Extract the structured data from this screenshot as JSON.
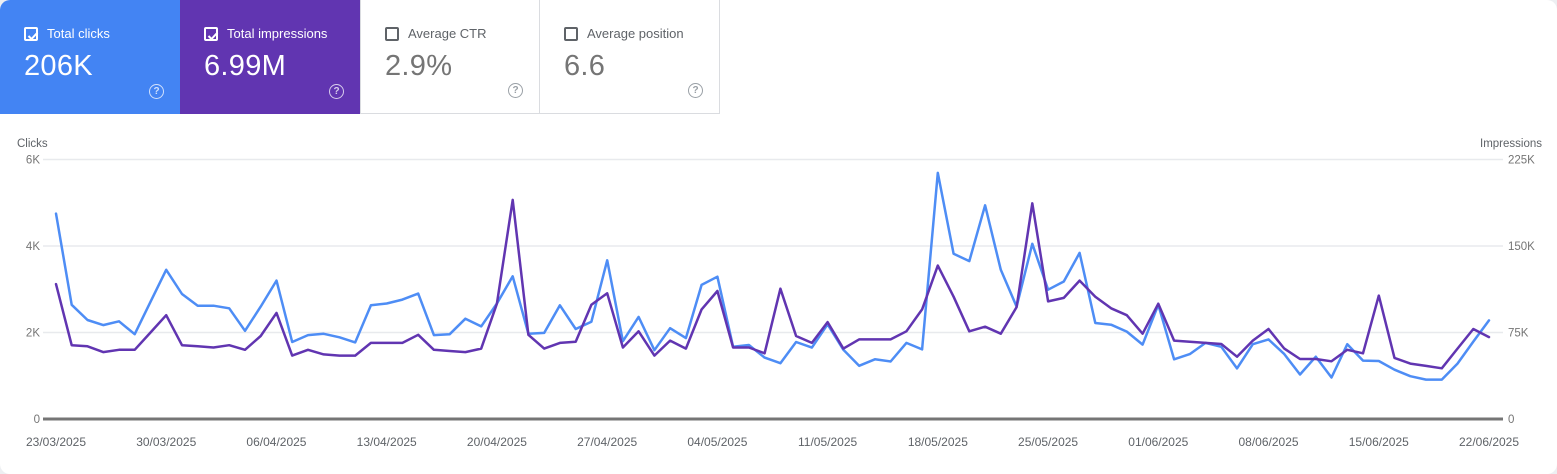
{
  "app": "Search Console Performance",
  "colors": {
    "clicks_accent": "#4384f3",
    "impressions_accent": "#6135b1",
    "clicks_line": "#4e8df5",
    "impressions_line": "#6135b1",
    "gridline": "#e8eaed",
    "axis_baseline": "#757575",
    "muted_text": "#5f6368"
  },
  "help_icon": "?",
  "cards": [
    {
      "id": "total-clicks",
      "label": "Total clicks",
      "value": "206K",
      "checked": true,
      "bg": "#4384f3",
      "label_color": "#ffffff",
      "value_color": "#ffffff",
      "checkbox_color": "#ffffff",
      "help_color": "rgba(255,255,255,0.75)"
    },
    {
      "id": "total-impressions",
      "label": "Total impressions",
      "value": "6.99M",
      "checked": true,
      "bg": "#6135b1",
      "label_color": "#ffffff",
      "value_color": "#ffffff",
      "checkbox_color": "#ffffff",
      "help_color": "rgba(255,255,255,0.75)"
    },
    {
      "id": "average-ctr",
      "label": "Average CTR",
      "value": "2.9%",
      "checked": false,
      "bg": "#ffffff",
      "label_color": "#5f6368",
      "value_color": "#757575",
      "checkbox_color": "#5f6368",
      "help_color": "#9aa0a6"
    },
    {
      "id": "average-position",
      "label": "Average position",
      "value": "6.6",
      "checked": false,
      "bg": "#ffffff",
      "label_color": "#5f6368",
      "value_color": "#757575",
      "checkbox_color": "#5f6368",
      "help_color": "#9aa0a6"
    }
  ],
  "chart_data": {
    "type": "line",
    "left_axis": {
      "label": "Clicks",
      "ticks": [
        "6K",
        "4K",
        "2K",
        "0"
      ],
      "max": 6000
    },
    "right_axis": {
      "label": "Impressions",
      "ticks": [
        "225K",
        "150K",
        "75K",
        "0"
      ],
      "max": 225000
    },
    "x_tick_labels": [
      "23/03/2025",
      "30/03/2025",
      "06/04/2025",
      "13/04/2025",
      "20/04/2025",
      "27/04/2025",
      "04/05/2025",
      "11/05/2025",
      "18/05/2025",
      "25/05/2025",
      "01/06/2025",
      "08/06/2025",
      "15/06/2025",
      "22/06/2025"
    ],
    "dates": [
      "23/03/2025",
      "24/03/2025",
      "25/03/2025",
      "26/03/2025",
      "27/03/2025",
      "28/03/2025",
      "29/03/2025",
      "30/03/2025",
      "31/03/2025",
      "01/04/2025",
      "02/04/2025",
      "03/04/2025",
      "04/04/2025",
      "05/04/2025",
      "06/04/2025",
      "07/04/2025",
      "08/04/2025",
      "09/04/2025",
      "10/04/2025",
      "11/04/2025",
      "12/04/2025",
      "13/04/2025",
      "14/04/2025",
      "15/04/2025",
      "16/04/2025",
      "17/04/2025",
      "18/04/2025",
      "19/04/2025",
      "20/04/2025",
      "21/04/2025",
      "22/04/2025",
      "23/04/2025",
      "24/04/2025",
      "25/04/2025",
      "26/04/2025",
      "27/04/2025",
      "28/04/2025",
      "29/04/2025",
      "30/04/2025",
      "01/05/2025",
      "02/05/2025",
      "03/05/2025",
      "04/05/2025",
      "05/05/2025",
      "06/05/2025",
      "07/05/2025",
      "08/05/2025",
      "09/05/2025",
      "10/05/2025",
      "11/05/2025",
      "12/05/2025",
      "13/05/2025",
      "14/05/2025",
      "15/05/2025",
      "16/05/2025",
      "17/05/2025",
      "18/05/2025",
      "19/05/2025",
      "20/05/2025",
      "21/05/2025",
      "22/05/2025",
      "23/05/2025",
      "24/05/2025",
      "25/05/2025",
      "26/05/2025",
      "27/05/2025",
      "28/05/2025",
      "29/05/2025",
      "30/05/2025",
      "31/05/2025",
      "01/06/2025",
      "02/06/2025",
      "03/06/2025",
      "04/06/2025",
      "05/06/2025",
      "06/06/2025",
      "07/06/2025",
      "08/06/2025",
      "09/06/2025",
      "10/06/2025",
      "11/06/2025",
      "12/06/2025",
      "13/06/2025",
      "14/06/2025",
      "15/06/2025",
      "16/06/2025",
      "17/06/2025",
      "18/06/2025",
      "19/06/2025",
      "20/06/2025",
      "21/06/2025",
      "22/06/2025"
    ],
    "series": [
      {
        "name": "Clicks",
        "axis": "left",
        "color": "#4e8df5",
        "values": [
          4750,
          2640,
          2290,
          2170,
          2260,
          1960,
          2710,
          3450,
          2890,
          2620,
          2620,
          2560,
          2040,
          2600,
          3200,
          1780,
          1940,
          1970,
          1890,
          1770,
          2630,
          2670,
          2760,
          2900,
          1940,
          1960,
          2320,
          2140,
          2670,
          3300,
          1970,
          1990,
          2630,
          2080,
          2250,
          3670,
          1800,
          2360,
          1590,
          2100,
          1870,
          3100,
          3290,
          1670,
          1710,
          1420,
          1290,
          1780,
          1650,
          2190,
          1600,
          1230,
          1380,
          1330,
          1760,
          1610,
          5690,
          3820,
          3650,
          4940,
          3450,
          2600,
          4050,
          2990,
          3180,
          3840,
          2220,
          2180,
          2020,
          1720,
          2640,
          1380,
          1500,
          1760,
          1670,
          1170,
          1730,
          1840,
          1500,
          1030,
          1440,
          960,
          1730,
          1350,
          1340,
          1140,
          990,
          910,
          910,
          1280,
          1790,
          2280
        ]
      },
      {
        "name": "Impressions",
        "axis": "right",
        "color": "#6135b1",
        "values": [
          117000,
          64000,
          63000,
          58000,
          60000,
          60000,
          75000,
          90000,
          64000,
          63000,
          62000,
          64000,
          60000,
          72000,
          92000,
          55000,
          60000,
          56000,
          55000,
          55000,
          66000,
          66000,
          66000,
          73000,
          60000,
          59000,
          58000,
          61000,
          100000,
          190000,
          73000,
          61000,
          66000,
          67000,
          99000,
          109000,
          62000,
          76000,
          55000,
          68000,
          61000,
          95000,
          111000,
          62000,
          62000,
          57000,
          113000,
          72000,
          66000,
          84000,
          61000,
          69000,
          69000,
          69000,
          76000,
          95000,
          133000,
          106000,
          76000,
          80000,
          74000,
          97000,
          187000,
          102000,
          105000,
          120000,
          106000,
          96000,
          90000,
          74000,
          100000,
          68000,
          67000,
          66000,
          65000,
          54000,
          68000,
          78000,
          61000,
          52000,
          52000,
          50000,
          60000,
          57000,
          107000,
          53000,
          48000,
          46000,
          44000,
          61000,
          78000,
          71000
        ]
      }
    ]
  }
}
